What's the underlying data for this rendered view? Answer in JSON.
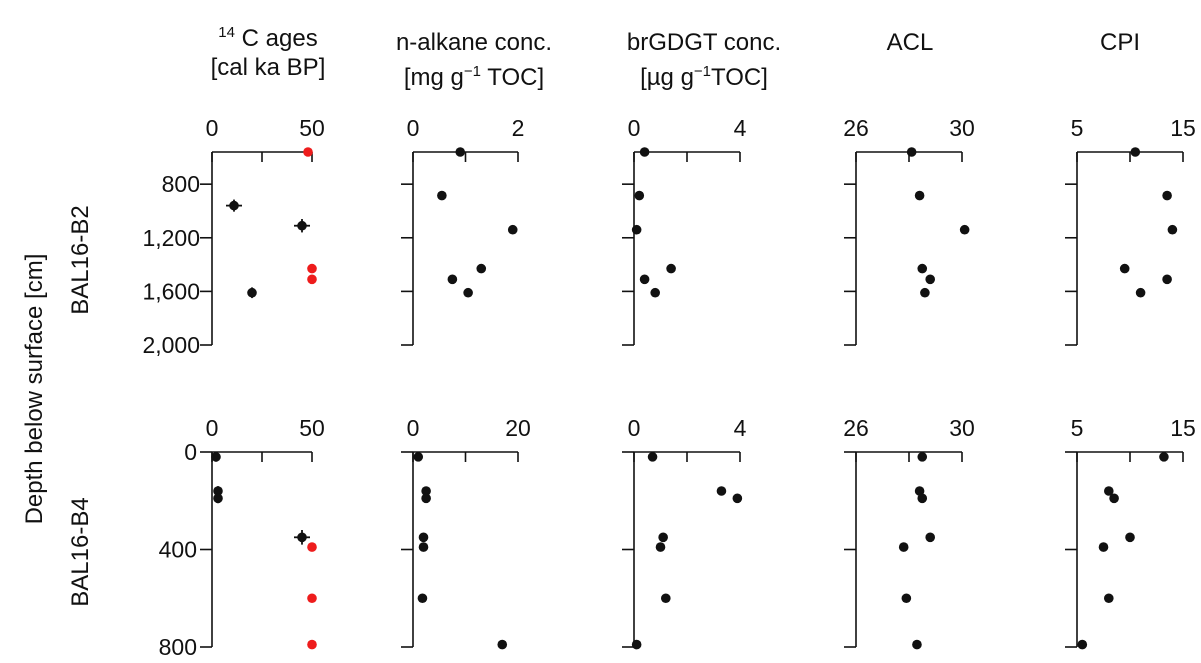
{
  "figure": {
    "y_title": "Depth below surface [cm]",
    "core_labels": [
      "BAL16-B2",
      "BAL16-B4"
    ],
    "headers": [
      {
        "l1_sup": "14",
        "l1": " C ages",
        "l2": "[cal ka BP]"
      },
      {
        "l1_sup": "",
        "l1": "n-alkane conc.",
        "l2": "[mg g",
        "l2_sup": "−1",
        "l2_end": " TOC]"
      },
      {
        "l1_sup": "",
        "l1": "brGDGT conc.",
        "l2": "[µg g",
        "l2_sup": "−1",
        "l2_end": "TOC]"
      },
      {
        "l1_sup": "",
        "l1": "ACL",
        "l2": ""
      },
      {
        "l1_sup": "",
        "l1": "CPI",
        "l2": ""
      }
    ],
    "colors": {
      "point": "#111111",
      "excluded": "#ee1c1c",
      "axis": "#111111"
    }
  },
  "chart_data": [
    {
      "type": "scatter",
      "core": "BAL16-B2",
      "ylim": [
        2000,
        560
      ],
      "yticks": [
        800,
        1200,
        1600,
        2000
      ],
      "ytick_labels": [
        "800",
        "1,200",
        "1,600",
        "2,000"
      ],
      "panels": [
        {
          "name": "14C ages",
          "xlim": [
            0,
            50
          ],
          "xticks": [
            0,
            25,
            50
          ],
          "xtick_labels": [
            "0",
            "",
            "50"
          ],
          "points": [
            {
              "x": 11,
              "y": 960,
              "err": 4,
              "yerr": 90
            },
            {
              "x": 45,
              "y": 1110,
              "err": 4,
              "yerr": 100
            },
            {
              "x": 20,
              "y": 1610,
              "err": 0,
              "yerr": 80
            }
          ],
          "excluded": [
            {
              "x": 48,
              "y": 560
            },
            {
              "x": 50,
              "y": 1430
            },
            {
              "x": 50,
              "y": 1510
            }
          ]
        },
        {
          "name": "n-alkane conc.",
          "xlim": [
            0,
            2
          ],
          "xticks": [
            0,
            1,
            2
          ],
          "xtick_labels": [
            "0",
            "",
            "2"
          ],
          "points": [
            {
              "x": 0.9,
              "y": 560
            },
            {
              "x": 0.55,
              "y": 885
            },
            {
              "x": 1.9,
              "y": 1140
            },
            {
              "x": 1.3,
              "y": 1430
            },
            {
              "x": 0.75,
              "y": 1510
            },
            {
              "x": 1.05,
              "y": 1610
            }
          ]
        },
        {
          "name": "brGDGT conc.",
          "xlim": [
            0,
            4
          ],
          "xticks": [
            0,
            2,
            4
          ],
          "xtick_labels": [
            "0",
            "",
            "4"
          ],
          "points": [
            {
              "x": 0.4,
              "y": 560
            },
            {
              "x": 0.2,
              "y": 885
            },
            {
              "x": 0.1,
              "y": 1140
            },
            {
              "x": 1.4,
              "y": 1430
            },
            {
              "x": 0.4,
              "y": 1510
            },
            {
              "x": 0.8,
              "y": 1610
            }
          ]
        },
        {
          "name": "ACL",
          "xlim": [
            26,
            30
          ],
          "xticks": [
            26,
            28,
            30
          ],
          "xtick_labels": [
            "26",
            "",
            "30"
          ],
          "points": [
            {
              "x": 28.1,
              "y": 560
            },
            {
              "x": 28.4,
              "y": 885
            },
            {
              "x": 30.1,
              "y": 1140
            },
            {
              "x": 28.5,
              "y": 1430
            },
            {
              "x": 28.8,
              "y": 1510
            },
            {
              "x": 28.6,
              "y": 1610
            }
          ]
        },
        {
          "name": "CPI",
          "xlim": [
            5,
            15
          ],
          "xticks": [
            5,
            10,
            15
          ],
          "xtick_labels": [
            "5",
            "",
            "15"
          ],
          "points": [
            {
              "x": 10.5,
              "y": 560
            },
            {
              "x": 13.5,
              "y": 885
            },
            {
              "x": 14,
              "y": 1140
            },
            {
              "x": 9.5,
              "y": 1430
            },
            {
              "x": 13.5,
              "y": 1510
            },
            {
              "x": 11,
              "y": 1610
            }
          ]
        }
      ]
    },
    {
      "type": "scatter",
      "core": "BAL16-B4",
      "ylim": [
        800,
        0
      ],
      "yticks": [
        0,
        400,
        800
      ],
      "ytick_labels": [
        "0",
        "400",
        "800"
      ],
      "panels": [
        {
          "name": "14C ages",
          "xlim": [
            0,
            50
          ],
          "xticks": [
            0,
            25,
            50
          ],
          "xtick_labels": [
            "0",
            "",
            "50"
          ],
          "points": [
            {
              "x": 2,
              "y": 20,
              "err": 2,
              "yerr": 40
            },
            {
              "x": 3,
              "y": 160,
              "err": 0,
              "yerr": 40
            },
            {
              "x": 3,
              "y": 190,
              "err": 0,
              "yerr": 40
            },
            {
              "x": 45,
              "y": 350,
              "err": 4,
              "yerr": 60
            }
          ],
          "excluded": [
            {
              "x": 50,
              "y": 390
            },
            {
              "x": 50,
              "y": 600
            },
            {
              "x": 50,
              "y": 790
            }
          ]
        },
        {
          "name": "n-alkane conc.",
          "xlim": [
            0,
            20
          ],
          "xticks": [
            0,
            10,
            20
          ],
          "xtick_labels": [
            "0",
            "",
            "20"
          ],
          "points": [
            {
              "x": 1,
              "y": 20
            },
            {
              "x": 2.5,
              "y": 160
            },
            {
              "x": 2.5,
              "y": 190
            },
            {
              "x": 2,
              "y": 350
            },
            {
              "x": 2,
              "y": 390
            },
            {
              "x": 1.8,
              "y": 600
            },
            {
              "x": 17,
              "y": 790
            }
          ]
        },
        {
          "name": "brGDGT conc.",
          "xlim": [
            0,
            4
          ],
          "xticks": [
            0,
            2,
            4
          ],
          "xtick_labels": [
            "0",
            "",
            "4"
          ],
          "points": [
            {
              "x": 0.7,
              "y": 20
            },
            {
              "x": 3.3,
              "y": 160
            },
            {
              "x": 3.9,
              "y": 190
            },
            {
              "x": 1.1,
              "y": 350
            },
            {
              "x": 1.0,
              "y": 390
            },
            {
              "x": 1.2,
              "y": 600
            },
            {
              "x": 0.1,
              "y": 790
            }
          ]
        },
        {
          "name": "ACL",
          "xlim": [
            26,
            30
          ],
          "xticks": [
            26,
            28,
            30
          ],
          "xtick_labels": [
            "26",
            "",
            "30"
          ],
          "points": [
            {
              "x": 28.5,
              "y": 20
            },
            {
              "x": 28.4,
              "y": 160
            },
            {
              "x": 28.5,
              "y": 190
            },
            {
              "x": 28.8,
              "y": 350
            },
            {
              "x": 27.8,
              "y": 390
            },
            {
              "x": 27.9,
              "y": 600
            },
            {
              "x": 28.3,
              "y": 790
            }
          ]
        },
        {
          "name": "CPI",
          "xlim": [
            5,
            15
          ],
          "xticks": [
            5,
            10,
            15
          ],
          "xtick_labels": [
            "5",
            "",
            "15"
          ],
          "points": [
            {
              "x": 13.2,
              "y": 20
            },
            {
              "x": 8,
              "y": 160
            },
            {
              "x": 8.5,
              "y": 190
            },
            {
              "x": 10,
              "y": 350
            },
            {
              "x": 7.5,
              "y": 390
            },
            {
              "x": 8,
              "y": 600
            },
            {
              "x": 5.5,
              "y": 790
            }
          ]
        }
      ]
    }
  ]
}
